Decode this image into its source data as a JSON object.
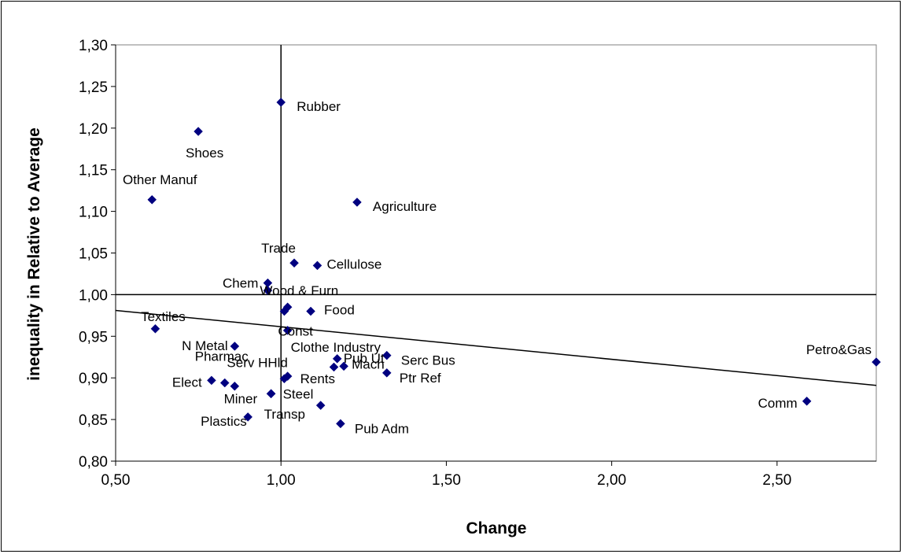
{
  "chart_data": {
    "type": "scatter",
    "xlabel": "Change",
    "ylabel": "inequality in Relative to Average",
    "xlim": [
      0.5,
      2.8
    ],
    "ylim": [
      0.8,
      1.3
    ],
    "x_ticks": [
      "0,50",
      "1,00",
      "1,50",
      "2,00",
      "2,50"
    ],
    "y_ticks": [
      "0,80",
      "0,85",
      "0,90",
      "0,95",
      "1,00",
      "1,05",
      "1,10",
      "1,15",
      "1,20",
      "1,25",
      "1,30"
    ],
    "grid": false,
    "legend": "none",
    "marker_color": "#000080",
    "reference_lines": {
      "vertical_x": 1.0,
      "horizontal_y": 1.0
    },
    "trend_line": {
      "from": [
        0.5,
        0.981
      ],
      "to": [
        2.8,
        0.891
      ]
    },
    "points": [
      {
        "label": "Rubber",
        "x": 1.0,
        "y": 1.231
      },
      {
        "label": "Shoes",
        "x": 0.75,
        "y": 1.196
      },
      {
        "label": "Other Manuf",
        "x": 0.61,
        "y": 1.114
      },
      {
        "label": "Agriculture",
        "x": 1.23,
        "y": 1.111
      },
      {
        "label": "Trade",
        "x": 1.04,
        "y": 1.038
      },
      {
        "label": "Cellulose",
        "x": 1.11,
        "y": 1.035
      },
      {
        "label": "Chem",
        "x": 0.96,
        "y": 1.014
      },
      {
        "label": "Wood & Furn",
        "x": 0.96,
        "y": 1.005
      },
      {
        "label": "",
        "x": 1.02,
        "y": 0.985
      },
      {
        "label": "Const",
        "x": 1.01,
        "y": 0.98
      },
      {
        "label": "Food",
        "x": 1.09,
        "y": 0.98
      },
      {
        "label": "Textiles",
        "x": 0.62,
        "y": 0.959
      },
      {
        "label": "Clothe Industry",
        "x": 1.02,
        "y": 0.957
      },
      {
        "label": "N Metal",
        "x": 0.86,
        "y": 0.938
      },
      {
        "label": "Pub Ut",
        "x": 1.17,
        "y": 0.923
      },
      {
        "label": "Serc Bus",
        "x": 1.32,
        "y": 0.927
      },
      {
        "label": "",
        "x": 1.16,
        "y": 0.913
      },
      {
        "label": "Mach",
        "x": 1.19,
        "y": 0.914
      },
      {
        "label": "Petro&Gas",
        "x": 2.8,
        "y": 0.919
      },
      {
        "label": "Ptr Ref",
        "x": 1.32,
        "y": 0.906
      },
      {
        "label": "Rents",
        "x": 1.02,
        "y": 0.902
      },
      {
        "label": "Serv HHld",
        "x": 1.01,
        "y": 0.899
      },
      {
        "label": "Elect",
        "x": 0.79,
        "y": 0.897
      },
      {
        "label": "Pharmac",
        "x": 0.83,
        "y": 0.894
      },
      {
        "label": "",
        "x": 0.86,
        "y": 0.89
      },
      {
        "label": "Steel",
        "x": 0.97,
        "y": 0.881
      },
      {
        "label": "Transp",
        "x": 1.12,
        "y": 0.867
      },
      {
        "label": "Comm",
        "x": 2.59,
        "y": 0.872
      },
      {
        "label": "Miner",
        "x": 0.97,
        "y": 0.881
      },
      {
        "label": "Plastics",
        "x": 0.9,
        "y": 0.853
      },
      {
        "label": "Pub Adm",
        "x": 1.18,
        "y": 0.845
      }
    ]
  }
}
